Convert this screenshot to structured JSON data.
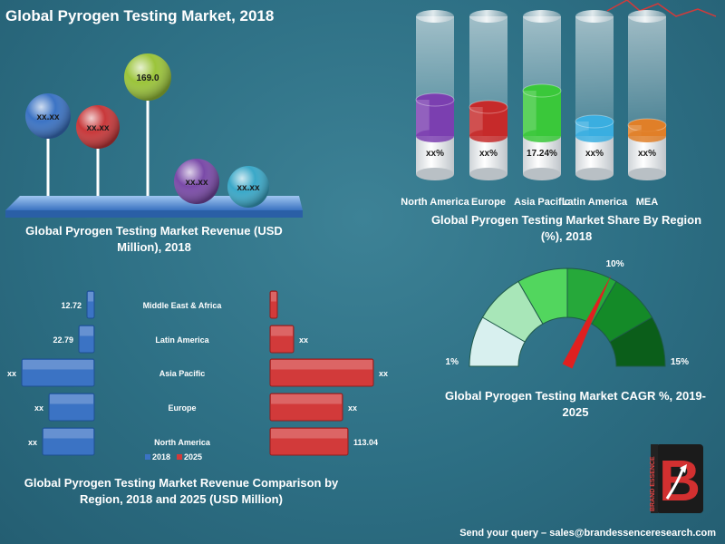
{
  "title": "Global Pyrogen Testing Market, 2018",
  "footer": "Send your query – sales@brandessenceresearch.com",
  "logo": {
    "letter": "B",
    "vertical_text": "BRAND ESSENCE"
  },
  "chart_data": [
    {
      "type": "scatter",
      "title": "Global Pyrogen Testing  Market Revenue (USD Million), 2018",
      "points": [
        {
          "label": "xx.xx",
          "color": "#3b73c4"
        },
        {
          "label": "xx.xx",
          "color": "#c8383a"
        },
        {
          "label": "169.0",
          "value": 169.0,
          "color": "#9bc43a"
        },
        {
          "label": "xx.xx",
          "color": "#7a4aa8"
        },
        {
          "label": "xx.xx",
          "color": "#3aa8c8"
        }
      ]
    },
    {
      "type": "bar",
      "title": "Global Pyrogen Testing Market Share By Region  (%), 2018",
      "categories": [
        "North America",
        "Europe",
        "Asia Pacific",
        "Latin America",
        "MEA"
      ],
      "labels": [
        "xx%",
        "xx%",
        "17.24%",
        "xx%",
        "xx%"
      ],
      "values": [
        null,
        null,
        17.24,
        null,
        null
      ],
      "colors": [
        "#7b3fb0",
        "#c62a2a",
        "#3ac83a",
        "#3aaee0",
        "#e07f28"
      ]
    },
    {
      "type": "bar",
      "orientation": "horizontal",
      "title": "Global Pyrogen Testing Market Revenue Comparison by Region, 2018 and 2025  (USD Million)",
      "categories": [
        "Middle East & Africa",
        "Latin America",
        "Asia Pacific",
        "Europe",
        "North America"
      ],
      "legend": [
        "2018",
        "2025"
      ],
      "series": [
        {
          "name": "2018",
          "labels": [
            "12.72",
            "22.79",
            "xx",
            "xx",
            "xx"
          ],
          "values": [
            12.72,
            22.79,
            null,
            null,
            null
          ],
          "color": "#3b73c4"
        },
        {
          "name": "2025",
          "labels": [
            "",
            "xx",
            "xx",
            "xx",
            "113.04"
          ],
          "values": [
            null,
            null,
            null,
            null,
            113.04
          ],
          "color": "#d23a3a"
        }
      ]
    },
    {
      "type": "gauge",
      "title": "Global Pyrogen Testing Market CAGR %, 2019-2025",
      "min_label": "1%",
      "max_label": "15%",
      "value_label": "10%",
      "min": 1,
      "max": 15,
      "value": 10
    }
  ]
}
